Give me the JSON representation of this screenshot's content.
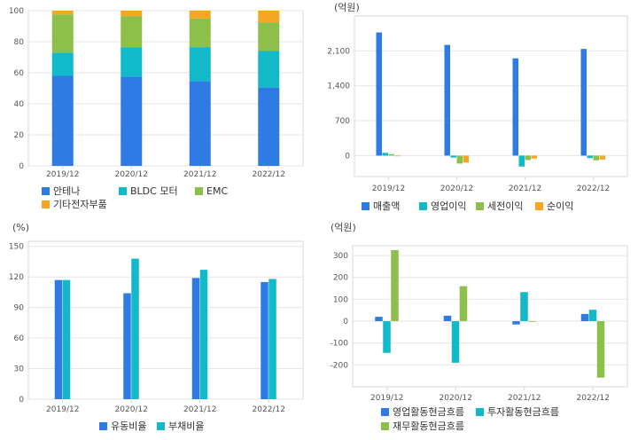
{
  "colors": {
    "blue": "#2e7be4",
    "teal": "#12b9c9",
    "green": "#8dc04a",
    "orange": "#f5a623",
    "grid": "#e6e6e6",
    "frame": "#d9d9d9"
  },
  "chart_data": [
    {
      "id": "revenue-mix",
      "type": "bar",
      "stacked": true,
      "categories": [
        "2019/12",
        "2020/12",
        "2021/12",
        "2022/12"
      ],
      "yticks": [
        "0",
        "20",
        "40",
        "60",
        "80",
        "100"
      ],
      "ylim": [
        0,
        100
      ],
      "unit": "",
      "series": [
        {
          "name": "안테나",
          "color": "blue",
          "values": [
            58,
            57.5,
            54.5,
            50.5
          ]
        },
        {
          "name": "BLDC 모터",
          "color": "teal",
          "values": [
            15,
            19,
            22,
            23.5
          ]
        },
        {
          "name": "EMC",
          "color": "green",
          "values": [
            24.5,
            20,
            18.5,
            18.5
          ]
        },
        {
          "name": "기타전자부품",
          "color": "orange",
          "values": [
            2.5,
            3.5,
            5,
            7.5
          ]
        }
      ]
    },
    {
      "id": "income",
      "type": "bar",
      "stacked": false,
      "categories": [
        "2019/12",
        "2020/12",
        "2021/12",
        "2022/12"
      ],
      "yticks": [
        "0",
        "700",
        "1,400",
        "2,100"
      ],
      "ylim": [
        -420,
        2800
      ],
      "unit": "(억원)",
      "series": [
        {
          "name": "매출액",
          "color": "blue",
          "values": [
            2470,
            2220,
            1950,
            2140
          ]
        },
        {
          "name": "영업이익",
          "color": "teal",
          "values": [
            55,
            -40,
            -220,
            -50
          ]
        },
        {
          "name": "세전이익",
          "color": "green",
          "values": [
            30,
            -160,
            -90,
            -95
          ]
        },
        {
          "name": "순이익",
          "color": "orange",
          "values": [
            0,
            -140,
            -60,
            -80
          ]
        }
      ]
    },
    {
      "id": "ratios",
      "type": "bar",
      "stacked": false,
      "categories": [
        "2019/12",
        "2020/12",
        "2021/12",
        "2022/12"
      ],
      "yticks": [
        "0",
        "30",
        "60",
        "90",
        "120",
        "150"
      ],
      "ylim": [
        0,
        155
      ],
      "unit": "(%)",
      "series": [
        {
          "name": "유동비율",
          "color": "blue",
          "values": [
            117,
            104,
            119,
            115
          ]
        },
        {
          "name": "부채비율",
          "color": "teal",
          "values": [
            117,
            138,
            127,
            118
          ]
        }
      ]
    },
    {
      "id": "cashflow",
      "type": "bar",
      "stacked": false,
      "categories": [
        "2019/12",
        "2020/12",
        "2021/12",
        "2022/12"
      ],
      "yticks": [
        "-200",
        "-100",
        "0",
        "100",
        "200",
        "300"
      ],
      "ylim": [
        -300,
        345
      ],
      "unit": "(억원)",
      "series": [
        {
          "name": "영업활동현금흐름",
          "color": "blue",
          "values": [
            20,
            25,
            -15,
            33
          ]
        },
        {
          "name": "투자활동현금흐름",
          "color": "teal",
          "values": [
            -145,
            -190,
            133,
            52
          ]
        },
        {
          "name": "재무활동현금흐름",
          "color": "green",
          "values": [
            325,
            160,
            -3,
            -258
          ]
        }
      ]
    }
  ]
}
